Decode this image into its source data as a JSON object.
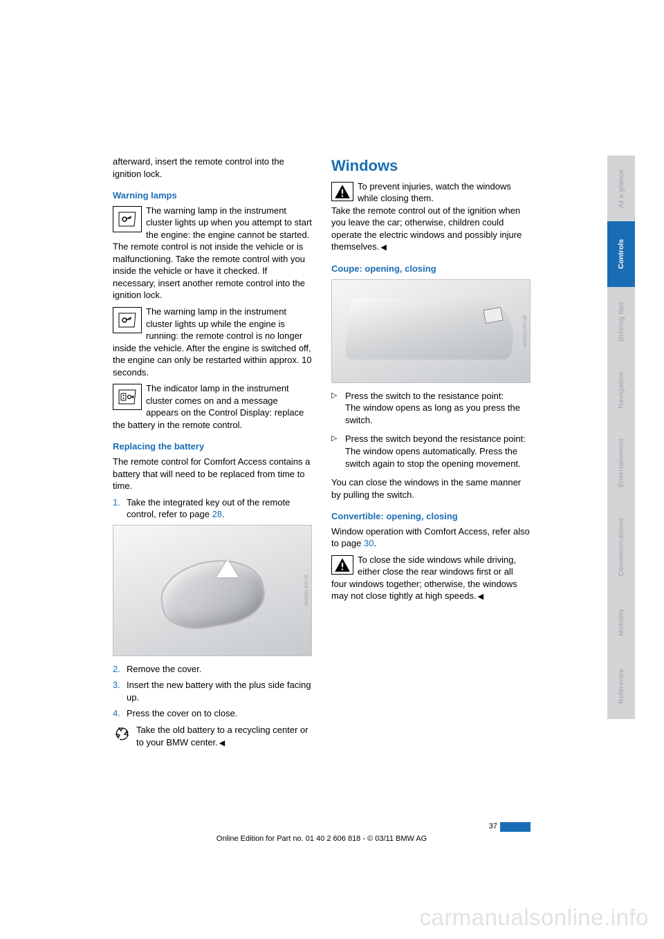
{
  "left": {
    "intro": "afterward, insert the remote control into the ignition lock.",
    "warningLamps": {
      "heading": "Warning lamps",
      "para1": "The warning lamp in the instrument cluster lights up when you attempt to start the engine: the engine cannot be started. The remote control is not inside the vehicle or is malfunctioning. Take the remote control with you inside the vehicle or have it checked. If necessary, insert another remote control into the ignition lock.",
      "para2": "The warning lamp in the instrument cluster lights up while the engine is running: the remote control is no longer inside the vehicle. After the engine is switched off, the engine can only be restarted within approx. 10 seconds.",
      "para3": "The indicator lamp in the instrument cluster comes on and a message appears on the Control Display: replace the battery in the remote control."
    },
    "battery": {
      "heading": "Replacing the battery",
      "intro": "The remote control for Comfort Access con­tains a battery that will need to be replaced from time to time.",
      "steps": {
        "s1a": "Take the integrated key out of the remote control, refer to page ",
        "s1link": "28",
        "s1b": ".",
        "s2": "Remove the cover.",
        "s3": "Insert the new battery with the plus side fac­ing up.",
        "s4": "Press the cover on to close."
      },
      "recycle": "Take the old battery to a recycling center or to your BMW center."
    }
  },
  "right": {
    "heading": "Windows",
    "warn": "To prevent injuries, watch the windows while closing them.",
    "warnPara": "Take the remote control out of the ignition when you leave the car; otherwise, children could operate the electric windows and possi­bly injure themselves.",
    "coupe": {
      "heading": "Coupe: opening, closing",
      "b1a": "Press the switch to the resistance point:",
      "b1b": "The window opens as long as you press the switch.",
      "b2a": "Press the switch beyond the resistance point:",
      "b2b": "The window opens automatically. Press the switch again to stop the opening move­ment.",
      "closing": "You can close the windows in the same manner by pulling the switch."
    },
    "conv": {
      "heading": "Convertible: opening, closing",
      "p1a": "Window operation with Comfort Access, refer also to page ",
      "p1link": "30",
      "p1b": ".",
      "warn": "To close the side windows while driving, either close the rear windows first or all four windows together; otherwise, the windows may not close tightly at high speeds."
    }
  },
  "footer": {
    "page": "37",
    "line": "Online Edition for Part no. 01 40 2 606 818 - © 03/11 BMW AG"
  },
  "tabs": {
    "t1": "At a glance",
    "t2": "Controls",
    "t3": "Driving tips",
    "t4": "Navigation",
    "t5": "Entertainment",
    "t6": "Communications",
    "t7": "Mobility",
    "t8": "Reference"
  },
  "watermark": "carmanualsonline.info",
  "tabHeights": [
    95,
    95,
    100,
    98,
    114,
    128,
    90,
    95
  ],
  "colors": {
    "accent": "#1a6db5",
    "tabInactiveBg": "#d2d4d6",
    "tabInactiveText": "#acafb2"
  }
}
